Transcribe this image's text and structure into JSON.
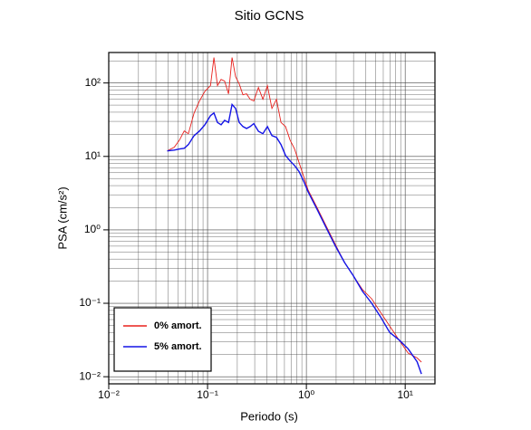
{
  "chart_data": {
    "type": "line",
    "title": "Sitio GCNS",
    "x_label": "Periodo (s)",
    "y_label": "PSA (cm/s²)",
    "x_scale": "log",
    "y_scale": "log",
    "grid": true,
    "minor_grid": true,
    "legend": "lower left",
    "xlim": [
      0.01,
      20
    ],
    "ylim": [
      0.008,
      260
    ],
    "xticks": [
      {
        "value": 0.01,
        "label": "10⁻²"
      },
      {
        "value": 0.1,
        "label": "10⁻¹"
      },
      {
        "value": 1,
        "label": "10⁰"
      },
      {
        "value": 10,
        "label": "10¹"
      }
    ],
    "yticks": [
      {
        "value": 0.01,
        "label": "10⁻²"
      },
      {
        "value": 0.1,
        "label": "10⁻¹"
      },
      {
        "value": 1,
        "label": "10⁰"
      },
      {
        "value": 10,
        "label": "10¹"
      },
      {
        "value": 100,
        "label": "10²"
      }
    ],
    "x": [
      0.039,
      0.046,
      0.052,
      0.058,
      0.064,
      0.073,
      0.083,
      0.094,
      0.107,
      0.116,
      0.126,
      0.137,
      0.149,
      0.163,
      0.177,
      0.192,
      0.209,
      0.228,
      0.248,
      0.27,
      0.294,
      0.327,
      0.363,
      0.403,
      0.448,
      0.498,
      0.553,
      0.615,
      0.684,
      0.76,
      0.845,
      0.939,
      1.04,
      1.29,
      1.59,
      1.97,
      2.43,
      3.0,
      3.7,
      4.58,
      5.65,
      6.98,
      8.62,
      10.7,
      13.2,
      14.6
    ],
    "series": [
      {
        "name": "0% amort.",
        "color": "#e8201c",
        "width": 0.9,
        "values": [
          11.9,
          13.3,
          16.7,
          22.2,
          20.4,
          39,
          57,
          77,
          92,
          222,
          92,
          112,
          106,
          71,
          222,
          122,
          97,
          69,
          71,
          60,
          57,
          87,
          60,
          92,
          45,
          60,
          29,
          25.5,
          16.7,
          12.6,
          8.2,
          5.35,
          3.5,
          1.98,
          1.12,
          0.63,
          0.36,
          0.235,
          0.153,
          0.115,
          0.075,
          0.049,
          0.032,
          0.021,
          0.018,
          0.0158
        ]
      },
      {
        "name": "5% amort.",
        "color": "#1414e6",
        "width": 1.4,
        "values": [
          11.9,
          12.2,
          12.6,
          12.9,
          14.5,
          19.2,
          22.2,
          27,
          36,
          39,
          29,
          27,
          31,
          29,
          51,
          45,
          29,
          25.5,
          24,
          25.5,
          28,
          22,
          20.4,
          25.5,
          19.2,
          18.2,
          14.5,
          10.3,
          8.7,
          7.5,
          6.2,
          4.6,
          3.3,
          1.87,
          1.06,
          0.6,
          0.36,
          0.235,
          0.145,
          0.1,
          0.065,
          0.04,
          0.032,
          0.024,
          0.016,
          0.0109
        ]
      }
    ]
  }
}
